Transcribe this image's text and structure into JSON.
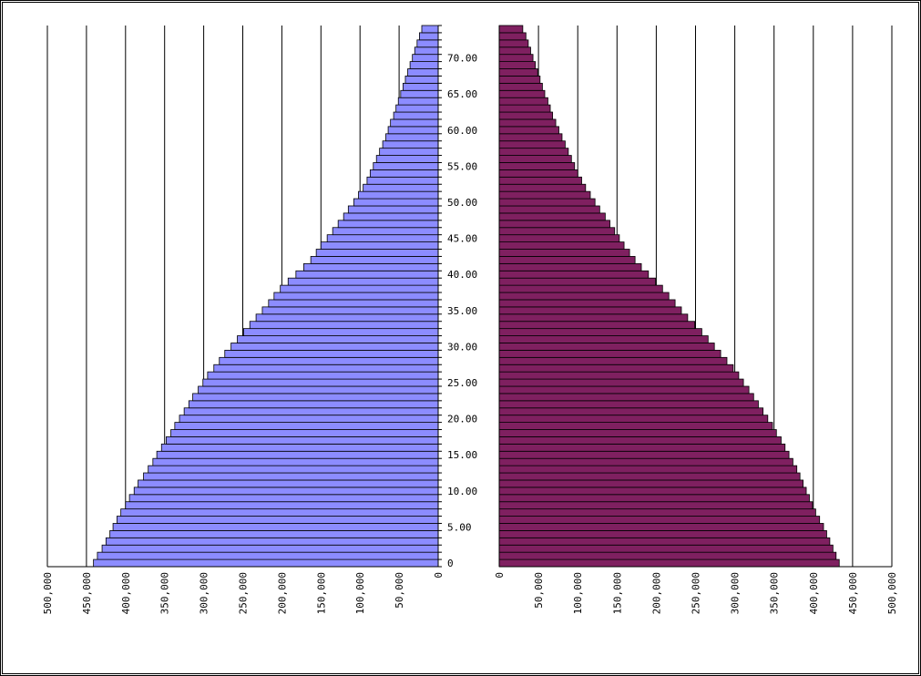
{
  "chart_data": {
    "type": "bar",
    "orientation": "horizontal",
    "layout": "population-pyramid",
    "title": "",
    "xlabel": "",
    "ylabel": "",
    "grid": true,
    "legend": "none",
    "y_ticks": [
      "0",
      "5.00",
      "10.00",
      "15.00",
      "20.00",
      "25.00",
      "30.00",
      "35.00",
      "40.00",
      "45.00",
      "50.00",
      "55.00",
      "60.00",
      "65.00",
      "70.00"
    ],
    "ages": [
      0,
      1,
      2,
      3,
      4,
      5,
      6,
      7,
      8,
      9,
      10,
      11,
      12,
      13,
      14,
      15,
      16,
      17,
      18,
      19,
      20,
      21,
      22,
      23,
      24,
      25,
      26,
      27,
      28,
      29,
      30,
      31,
      32,
      33,
      34,
      35,
      36,
      37,
      38,
      39,
      40,
      41,
      42,
      43,
      44,
      45,
      46,
      47,
      48,
      49,
      50,
      51,
      52,
      53,
      54,
      55,
      56,
      57,
      58,
      59,
      60,
      61,
      62,
      63,
      64,
      65,
      66,
      67,
      68,
      69,
      70,
      71,
      72,
      73,
      74
    ],
    "left": {
      "color": "#8c8cff",
      "xlim": [
        0,
        500000
      ],
      "x_ticks": [
        "500,000",
        "450,000",
        "400,000",
        "350,000",
        "300,000",
        "250,000",
        "200,000",
        "150,000",
        "100,000",
        "50,000",
        "0"
      ],
      "values": [
        441000,
        436000,
        430000,
        425000,
        420000,
        416000,
        411000,
        406000,
        400000,
        395000,
        389000,
        384000,
        377000,
        371000,
        365000,
        360000,
        354000,
        348000,
        342000,
        337000,
        331000,
        325000,
        319000,
        314000,
        307000,
        301000,
        295000,
        287000,
        280000,
        273000,
        265000,
        257000,
        249000,
        241000,
        233000,
        225000,
        217000,
        210000,
        202000,
        192000,
        182000,
        172000,
        163000,
        156000,
        150000,
        142000,
        135000,
        128000,
        121000,
        115000,
        108000,
        102000,
        96000,
        91000,
        87000,
        83000,
        79000,
        75000,
        71000,
        67000,
        64000,
        61000,
        57000,
        54000,
        51000,
        48000,
        45000,
        42000,
        39000,
        36000,
        33000,
        30000,
        27000,
        24000,
        21000
      ]
    },
    "right": {
      "color": "#7f2060",
      "xlim": [
        0,
        500000
      ],
      "x_ticks": [
        "0",
        "50,000",
        "100,000",
        "150,000",
        "200,000",
        "250,000",
        "300,000",
        "350,000",
        "400,000",
        "450,000",
        "500,000"
      ],
      "values": [
        433000,
        429000,
        425000,
        421000,
        417000,
        413000,
        408000,
        403000,
        399000,
        395000,
        391000,
        387000,
        383000,
        379000,
        374000,
        369000,
        364000,
        359000,
        353000,
        348000,
        342000,
        336000,
        330000,
        324000,
        318000,
        311000,
        305000,
        298000,
        290000,
        282000,
        274000,
        266000,
        258000,
        249000,
        240000,
        232000,
        224000,
        216000,
        208000,
        199000,
        190000,
        181000,
        173000,
        166000,
        159000,
        153000,
        147000,
        141000,
        135000,
        128000,
        122000,
        116000,
        110000,
        105000,
        100000,
        96000,
        92000,
        88000,
        84000,
        80000,
        76000,
        72000,
        68000,
        65000,
        62000,
        58000,
        55000,
        52000,
        49000,
        46000,
        43000,
        40000,
        37000,
        34000,
        30000
      ]
    }
  }
}
